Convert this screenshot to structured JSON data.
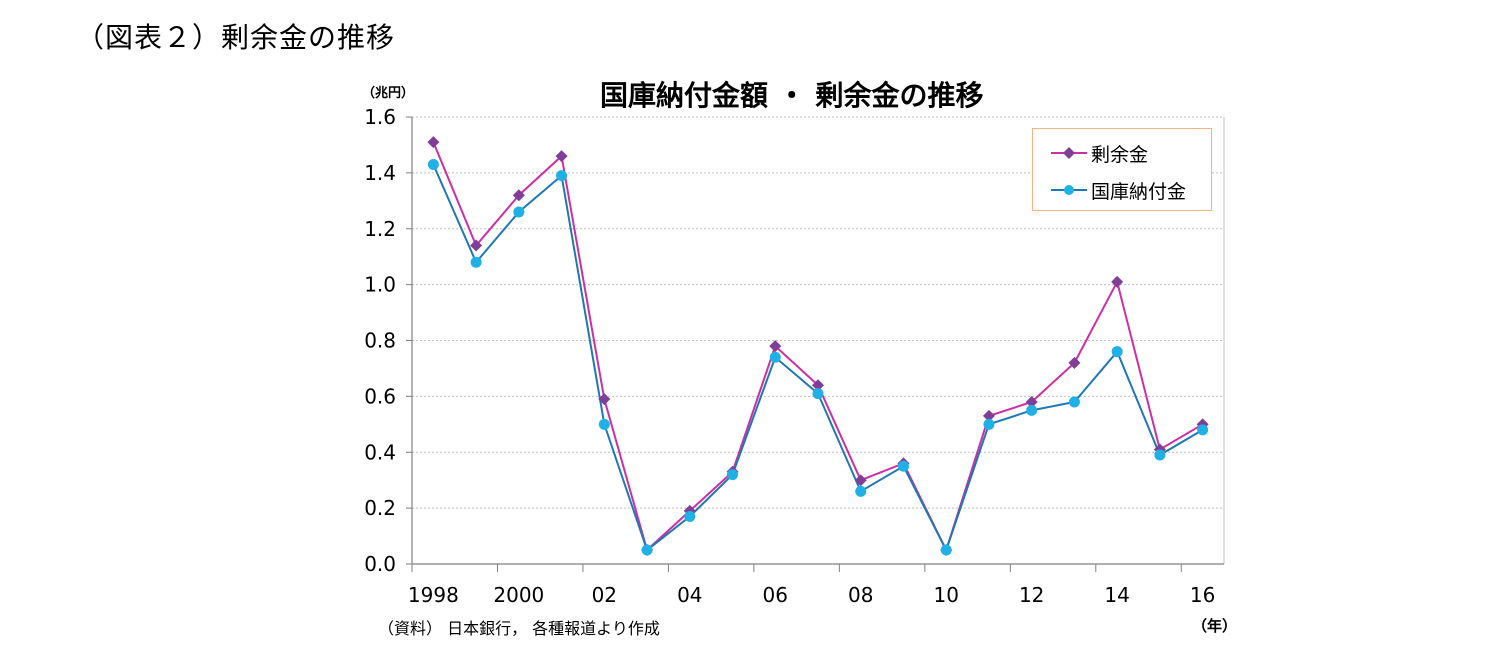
{
  "figure_title": "（図表２）剰余金の推移",
  "chart_data": {
    "type": "line",
    "title": "国庫納付金額 ・ 剰余金の推移",
    "y_unit": "（兆円）",
    "x_unit": "（年）",
    "source": "（資料） 日本銀行， 各種報道より作成",
    "x_tick_labels": [
      "1998",
      "2000",
      "02",
      "04",
      "06",
      "08",
      "10",
      "12",
      "14",
      "16"
    ],
    "y_tick_labels": [
      "0.0",
      "0.2",
      "0.4",
      "0.6",
      "0.8",
      "1.0",
      "1.2",
      "1.4",
      "1.6"
    ],
    "ylim": [
      0,
      1.6
    ],
    "x": [
      1998,
      1999,
      2000,
      2001,
      2002,
      2003,
      2004,
      2005,
      2006,
      2007,
      2008,
      2009,
      2010,
      2011,
      2012,
      2013,
      2014,
      2015,
      2016
    ],
    "series": [
      {
        "name": "剰余金",
        "color": "#cc2fa4",
        "marker": "diamond",
        "values": [
          1.51,
          1.14,
          1.32,
          1.46,
          0.59,
          0.05,
          0.19,
          0.33,
          0.78,
          0.64,
          0.3,
          0.36,
          0.05,
          0.53,
          0.58,
          0.72,
          1.01,
          0.41,
          0.5
        ]
      },
      {
        "name": "国庫納付金",
        "color": "#1f78b4",
        "marker": "circle",
        "values": [
          1.43,
          1.08,
          1.26,
          1.39,
          0.5,
          0.05,
          0.17,
          0.32,
          0.74,
          0.61,
          0.26,
          0.35,
          0.05,
          0.5,
          0.55,
          0.58,
          0.76,
          0.39,
          0.48
        ]
      }
    ],
    "grid": true,
    "legend_position": "top-right"
  }
}
